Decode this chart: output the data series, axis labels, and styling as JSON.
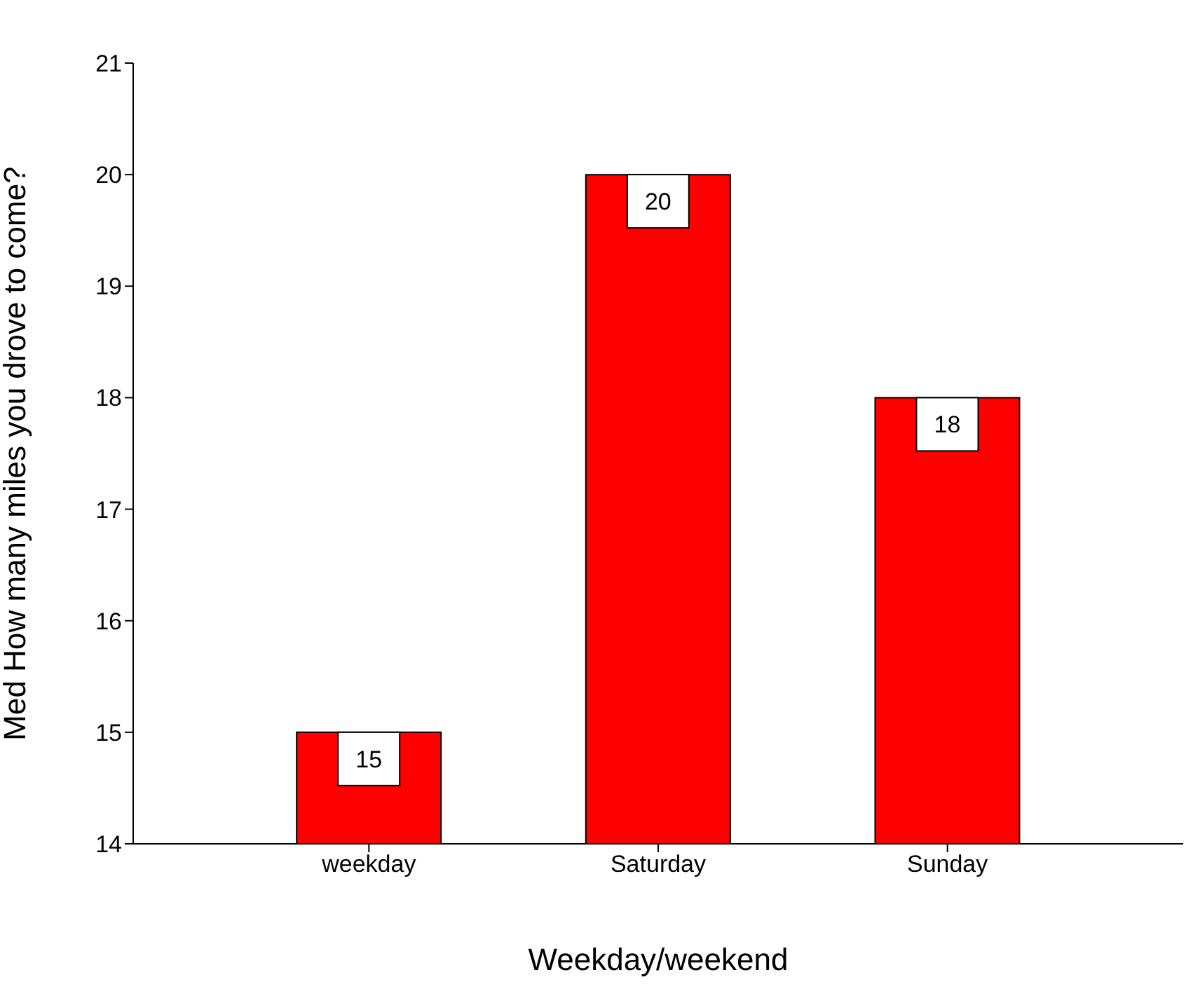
{
  "chart_data": {
    "type": "bar",
    "xlabel": "Weekday/weekend",
    "ylabel": "Med How many miles you drove to come?",
    "categories": [
      "weekday",
      "Saturday",
      "Sunday"
    ],
    "values": [
      15,
      20,
      18
    ],
    "color": "#ff0000",
    "ylim": [
      14,
      21
    ],
    "yticks": [
      14,
      15,
      16,
      17,
      18,
      19,
      20,
      21
    ],
    "data_labels": true,
    "grid": false,
    "legend": false
  }
}
